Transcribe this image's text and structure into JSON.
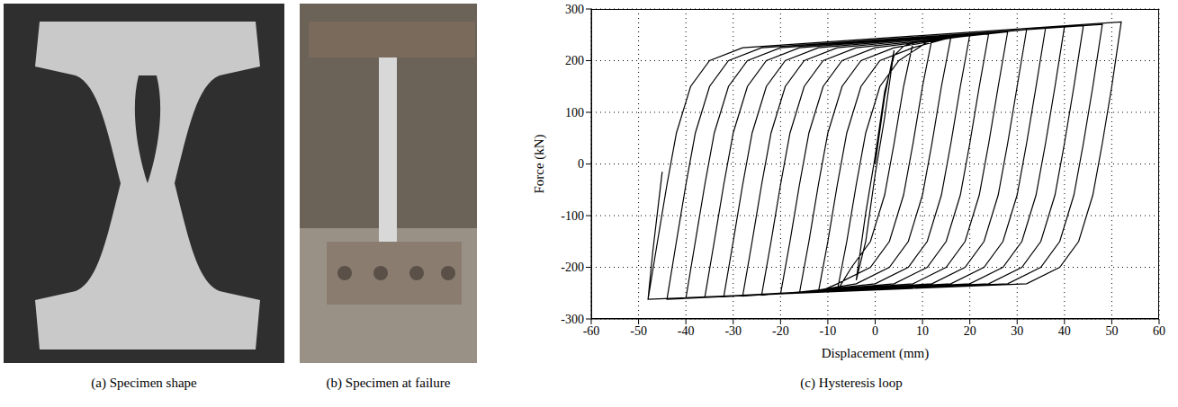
{
  "panels": [
    {
      "caption": "(a) Specimen shape"
    },
    {
      "caption": "(b) Specimen at failure"
    }
  ],
  "chart_data": {
    "type": "line",
    "title": "(c) Hysteresis loop",
    "x_label": "Displacement (mm)",
    "y_label": "Force (kN)",
    "xlim": [
      -60,
      60
    ],
    "ylim": [
      -300,
      300
    ],
    "xticks": [
      -60,
      -50,
      -40,
      -30,
      -20,
      -10,
      0,
      10,
      20,
      30,
      40,
      50,
      60
    ],
    "yticks": [
      -300,
      -200,
      -100,
      0,
      100,
      200,
      300
    ],
    "grid": true,
    "color": "#000000",
    "x": [
      0,
      2,
      4,
      2,
      0,
      -2,
      -4,
      -2,
      0,
      2,
      4,
      6,
      8,
      6,
      4,
      2,
      -1,
      -5,
      -8,
      -6,
      -4,
      -2,
      1,
      5,
      12,
      10,
      8,
      6,
      3,
      -1,
      -8,
      -12,
      -10,
      -8,
      -6,
      -3,
      1,
      8,
      16,
      14,
      12,
      10,
      7,
      3,
      -4,
      -16,
      -14,
      -12,
      -10,
      -7,
      -3,
      4,
      20,
      18,
      16,
      14,
      11,
      7,
      0,
      -20,
      -18,
      -16,
      -14,
      -11,
      -7,
      0,
      24,
      22,
      20,
      18,
      15,
      11,
      4,
      -24,
      -22,
      -20,
      -18,
      -15,
      -11,
      -4,
      28,
      26,
      24,
      22,
      19,
      15,
      8,
      -28,
      -26,
      -24,
      -22,
      -19,
      -15,
      -8,
      32,
      30,
      28,
      26,
      23,
      19,
      12,
      -32,
      -30,
      -28,
      -26,
      -23,
      -19,
      -12,
      36,
      34,
      32,
      30,
      27,
      23,
      16,
      -36,
      -34,
      -32,
      -30,
      -27,
      -23,
      -16,
      40,
      38,
      36,
      34,
      31,
      27,
      20,
      -40,
      -38,
      -36,
      -34,
      -31,
      -27,
      -20,
      44,
      42,
      40,
      38,
      35,
      31,
      24,
      -44,
      -42,
      -40,
      -38,
      -35,
      -31,
      -24,
      48,
      46,
      44,
      42,
      39,
      35,
      28,
      -48,
      -46,
      -44,
      -42,
      -39,
      -35,
      -28,
      52,
      50,
      48,
      46,
      43,
      39,
      32,
      -48,
      -47,
      -45
    ],
    "values": [
      0,
      130,
      220,
      90,
      -20,
      -150,
      -225,
      -95,
      15,
      140,
      210,
      228,
      235,
      150,
      40,
      -60,
      -150,
      -200,
      -245,
      -150,
      -40,
      60,
      150,
      200,
      242,
      150,
      40,
      -60,
      -150,
      -200,
      -232,
      -248,
      -150,
      -40,
      60,
      150,
      200,
      225,
      245,
      150,
      40,
      -60,
      -150,
      -200,
      -232,
      -250,
      -150,
      -40,
      60,
      150,
      200,
      225,
      250,
      150,
      40,
      -60,
      -150,
      -200,
      -232,
      -252,
      -150,
      -40,
      60,
      150,
      200,
      225,
      253,
      150,
      40,
      -60,
      -150,
      -200,
      -232,
      -254,
      -150,
      -40,
      60,
      150,
      200,
      225,
      256,
      150,
      40,
      -60,
      -150,
      -200,
      -232,
      -256,
      -150,
      -40,
      60,
      150,
      200,
      225,
      260,
      150,
      40,
      -60,
      -150,
      -200,
      -232,
      -257,
      -150,
      -40,
      60,
      150,
      200,
      225,
      263,
      150,
      40,
      -60,
      -150,
      -200,
      -232,
      -258,
      -150,
      -40,
      60,
      150,
      200,
      225,
      266,
      150,
      40,
      -60,
      -150,
      -200,
      -232,
      -260,
      -150,
      -40,
      60,
      150,
      200,
      225,
      268,
      150,
      40,
      -60,
      -150,
      -200,
      -232,
      -262,
      -150,
      -40,
      60,
      150,
      200,
      225,
      270,
      150,
      40,
      -60,
      -150,
      -200,
      -232,
      -262,
      -150,
      -40,
      60,
      150,
      200,
      225,
      275,
      150,
      40,
      -60,
      -150,
      -200,
      -232,
      -262,
      -170,
      -15
    ]
  }
}
